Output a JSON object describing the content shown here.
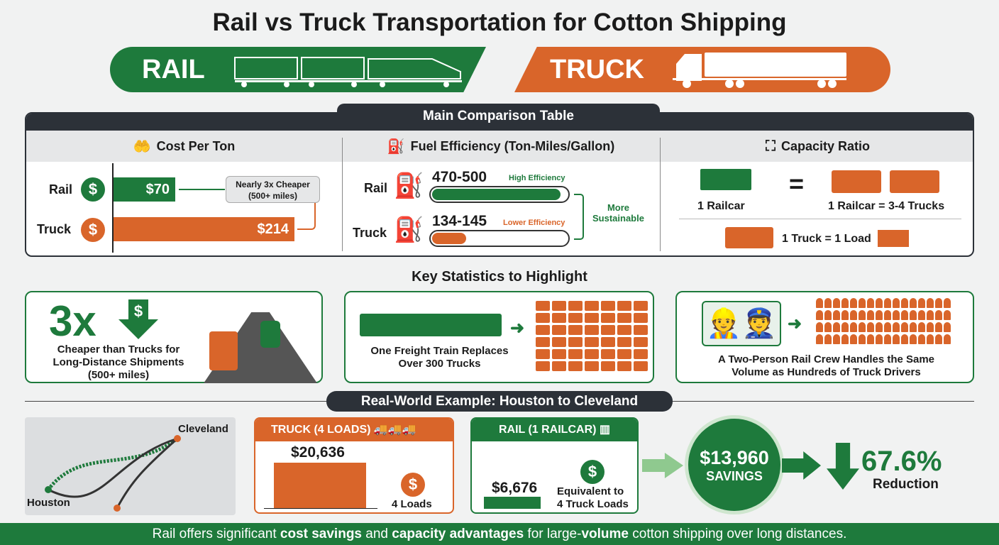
{
  "title": "Rail vs Truck Transportation for Cotton Shipping",
  "banners": {
    "rail": "RAIL",
    "truck": "TRUCK"
  },
  "colors": {
    "rail": "#1e7a3c",
    "truck": "#d9652a",
    "dark": "#2c3138"
  },
  "table": {
    "title": "Main Comparison Table",
    "cost": {
      "heading": "Cost Per Ton",
      "icon": "hand-dollar-icon",
      "rows": [
        {
          "label": "Rail",
          "value": "$70"
        },
        {
          "label": "Truck",
          "value": "$214"
        }
      ],
      "callout_line1": "Nearly 3x Cheaper",
      "callout_line2": "(500+ miles)"
    },
    "fuel": {
      "heading": "Fuel Efficiency (Ton-Miles/Gallon)",
      "icon": "fuel-pump-icon",
      "rows": [
        {
          "label": "Rail",
          "value": "470-500",
          "note": "High Efficiency",
          "fill": 0.95
        },
        {
          "label": "Truck",
          "value": "134-145",
          "note": "Lower Efficiency",
          "fill": 0.25
        }
      ],
      "side_line1": "More",
      "side_line2": "Sustainable"
    },
    "capacity": {
      "heading": "Capacity Ratio",
      "icon": "expand-icon",
      "railcar": "1 Railcar",
      "equals": "=",
      "equiv": "1 Railcar = 3-4 Trucks",
      "truck_load": "1 Truck = 1 Load"
    }
  },
  "stats": {
    "title": "Key Statistics to Highlight",
    "card1": {
      "big": "3x",
      "line1": "Cheaper than Trucks for",
      "line2": "Long-Distance Shipments",
      "line3": "(500+ miles)"
    },
    "card2": {
      "line1": "One Freight Train Replaces",
      "line2": "Over 300 Trucks"
    },
    "card3": {
      "line1": "A Two-Person Rail Crew Handles the Same",
      "line2": "Volume as Hundreds of Truck Drivers"
    }
  },
  "example": {
    "title": "Real-World Example: Houston to Cleveland",
    "map": {
      "origin": "Houston",
      "destination": "Cleveland"
    },
    "truck": {
      "header": "TRUCK (4 LOADS)",
      "cost": "$20,636",
      "note": "4 Loads"
    },
    "rail": {
      "header": "RAIL (1 RAILCAR)",
      "cost": "$6,676",
      "note1": "Equivalent to",
      "note2": "4 Truck Loads"
    },
    "savings": {
      "value": "$13,960",
      "label": "SAVINGS"
    },
    "reduction": {
      "value": "67.6%",
      "label": "Reduction"
    }
  },
  "footer": {
    "t1": "Rail offers significant ",
    "b1": "cost savings",
    "t2": " and ",
    "b2": "capacity advantages",
    "t3": " for large-",
    "b3": "volume",
    "t4": " cotton shipping over long distances."
  }
}
